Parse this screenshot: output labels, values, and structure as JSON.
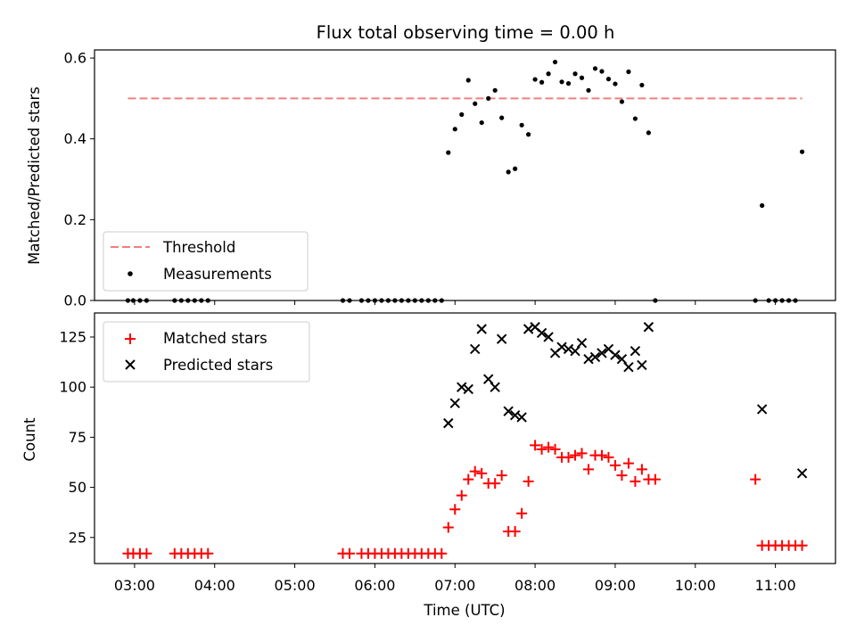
{
  "chart_data": {
    "title": "Flux total observing time = 0.00 h",
    "xlabel": "Time (UTC)",
    "x_unit": "hours (UTC)",
    "xlim": [
      "02:30",
      "11:45"
    ],
    "x_ticks": [
      "03:00",
      "04:00",
      "05:00",
      "06:00",
      "07:00",
      "08:00",
      "09:00",
      "10:00",
      "11:00"
    ],
    "panels": [
      {
        "type": "scatter",
        "ylabel": "Matched/Predicted stars",
        "ylim": [
          0,
          0.62
        ],
        "y_ticks": [
          "0.0",
          "0.2",
          "0.4",
          "0.6"
        ],
        "legend_position": "lower-left",
        "threshold": {
          "name": "Threshold",
          "value": 0.5,
          "x_range": [
            "02:55",
            "11:20"
          ],
          "color": "#f08080"
        },
        "series": [
          {
            "name": "Measurements",
            "color": "#000000",
            "marker": "dot",
            "points": [
              [
                "02:55",
                0
              ],
              [
                "02:59",
                0
              ],
              [
                "03:04",
                0
              ],
              [
                "03:09",
                0
              ],
              [
                "03:30",
                0
              ],
              [
                "03:35",
                0
              ],
              [
                "03:40",
                0
              ],
              [
                "03:45",
                0
              ],
              [
                "03:50",
                0
              ],
              [
                "03:55",
                0
              ],
              [
                "05:36",
                0
              ],
              [
                "05:41",
                0
              ],
              [
                "05:50",
                0
              ],
              [
                "05:55",
                0
              ],
              [
                "06:00",
                0
              ],
              [
                "06:05",
                0
              ],
              [
                "06:10",
                0
              ],
              [
                "06:15",
                0
              ],
              [
                "06:20",
                0
              ],
              [
                "06:25",
                0
              ],
              [
                "06:30",
                0
              ],
              [
                "06:35",
                0
              ],
              [
                "06:40",
                0
              ],
              [
                "06:45",
                0
              ],
              [
                "06:50",
                0
              ],
              [
                "06:55",
                0.366
              ],
              [
                "07:00",
                0.424
              ],
              [
                "07:05",
                0.46
              ],
              [
                "07:10",
                0.545
              ],
              [
                "07:15",
                0.487
              ],
              [
                "07:20",
                0.44
              ],
              [
                "07:25",
                0.5
              ],
              [
                "07:30",
                0.52
              ],
              [
                "07:35",
                0.452
              ],
              [
                "07:40",
                0.318
              ],
              [
                "07:45",
                0.326
              ],
              [
                "07:50",
                0.434
              ],
              [
                "07:55",
                0.411
              ],
              [
                "08:00",
                0.547
              ],
              [
                "08:05",
                0.54
              ],
              [
                "08:10",
                0.561
              ],
              [
                "08:15",
                0.59
              ],
              [
                "08:20",
                0.541
              ],
              [
                "08:25",
                0.537
              ],
              [
                "08:30",
                0.561
              ],
              [
                "08:35",
                0.551
              ],
              [
                "08:40",
                0.52
              ],
              [
                "08:45",
                0.574
              ],
              [
                "08:50",
                0.567
              ],
              [
                "08:55",
                0.548
              ],
              [
                "09:00",
                0.536
              ],
              [
                "09:05",
                0.492
              ],
              [
                "09:10",
                0.566
              ],
              [
                "09:15",
                0.45
              ],
              [
                "09:20",
                0.533
              ],
              [
                "09:25",
                0.415
              ],
              [
                "09:30",
                0
              ],
              [
                "10:45",
                0
              ],
              [
                "10:50",
                0.235
              ],
              [
                "10:55",
                0
              ],
              [
                "11:00",
                0
              ],
              [
                "11:05",
                0
              ],
              [
                "11:10",
                0
              ],
              [
                "11:15",
                0
              ],
              [
                "11:20",
                0.368
              ]
            ]
          }
        ]
      },
      {
        "type": "scatter",
        "ylabel": "Count",
        "ylim": [
          12,
          137
        ],
        "y_ticks": [
          "25",
          "50",
          "75",
          "100",
          "125"
        ],
        "legend_position": "upper-left",
        "series": [
          {
            "name": "Matched stars",
            "color": "#ff0000",
            "marker": "plus",
            "points": [
              [
                "02:55",
                17
              ],
              [
                "02:59",
                17
              ],
              [
                "03:04",
                17
              ],
              [
                "03:09",
                17
              ],
              [
                "03:30",
                17
              ],
              [
                "03:35",
                17
              ],
              [
                "03:40",
                17
              ],
              [
                "03:45",
                17
              ],
              [
                "03:50",
                17
              ],
              [
                "03:55",
                17
              ],
              [
                "05:36",
                17
              ],
              [
                "05:41",
                17
              ],
              [
                "05:50",
                17
              ],
              [
                "05:55",
                17
              ],
              [
                "06:00",
                17
              ],
              [
                "06:05",
                17
              ],
              [
                "06:10",
                17
              ],
              [
                "06:15",
                17
              ],
              [
                "06:20",
                17
              ],
              [
                "06:25",
                17
              ],
              [
                "06:30",
                17
              ],
              [
                "06:35",
                17
              ],
              [
                "06:40",
                17
              ],
              [
                "06:45",
                17
              ],
              [
                "06:50",
                17
              ],
              [
                "06:55",
                30
              ],
              [
                "07:00",
                39
              ],
              [
                "07:05",
                46
              ],
              [
                "07:10",
                54
              ],
              [
                "07:15",
                58
              ],
              [
                "07:20",
                57
              ],
              [
                "07:25",
                52
              ],
              [
                "07:30",
                52
              ],
              [
                "07:35",
                56
              ],
              [
                "07:40",
                28
              ],
              [
                "07:45",
                28
              ],
              [
                "07:50",
                37
              ],
              [
                "07:55",
                53
              ],
              [
                "08:00",
                71
              ],
              [
                "08:05",
                69
              ],
              [
                "08:10",
                70
              ],
              [
                "08:15",
                69
              ],
              [
                "08:20",
                65
              ],
              [
                "08:25",
                65
              ],
              [
                "08:30",
                66
              ],
              [
                "08:35",
                67
              ],
              [
                "08:40",
                59
              ],
              [
                "08:45",
                66
              ],
              [
                "08:50",
                66
              ],
              [
                "08:55",
                65
              ],
              [
                "09:00",
                61
              ],
              [
                "09:05",
                56
              ],
              [
                "09:10",
                62
              ],
              [
                "09:15",
                53
              ],
              [
                "09:20",
                59
              ],
              [
                "09:25",
                54
              ],
              [
                "09:30",
                54
              ],
              [
                "10:45",
                54
              ],
              [
                "10:50",
                21
              ],
              [
                "10:55",
                21
              ],
              [
                "11:00",
                21
              ],
              [
                "11:05",
                21
              ],
              [
                "11:10",
                21
              ],
              [
                "11:15",
                21
              ],
              [
                "11:20",
                21
              ]
            ]
          },
          {
            "name": "Predicted stars",
            "color": "#000000",
            "marker": "x",
            "points": [
              [
                "06:55",
                82
              ],
              [
                "07:00",
                92
              ],
              [
                "07:05",
                100
              ],
              [
                "07:10",
                99
              ],
              [
                "07:15",
                119
              ],
              [
                "07:20",
                129
              ],
              [
                "07:25",
                104
              ],
              [
                "07:30",
                100
              ],
              [
                "07:35",
                124
              ],
              [
                "07:40",
                88
              ],
              [
                "07:45",
                86
              ],
              [
                "07:50",
                85
              ],
              [
                "07:55",
                129
              ],
              [
                "08:00",
                130
              ],
              [
                "08:05",
                127
              ],
              [
                "08:10",
                125
              ],
              [
                "08:15",
                117
              ],
              [
                "08:20",
                120
              ],
              [
                "08:25",
                119
              ],
              [
                "08:30",
                118
              ],
              [
                "08:35",
                122
              ],
              [
                "08:40",
                114
              ],
              [
                "08:45",
                115
              ],
              [
                "08:50",
                117
              ],
              [
                "08:55",
                119
              ],
              [
                "09:00",
                116
              ],
              [
                "09:05",
                114
              ],
              [
                "09:10",
                110
              ],
              [
                "09:15",
                118
              ],
              [
                "09:20",
                111
              ],
              [
                "09:25",
                130
              ],
              [
                "10:50",
                89
              ],
              [
                "11:20",
                57
              ]
            ]
          }
        ]
      }
    ]
  }
}
